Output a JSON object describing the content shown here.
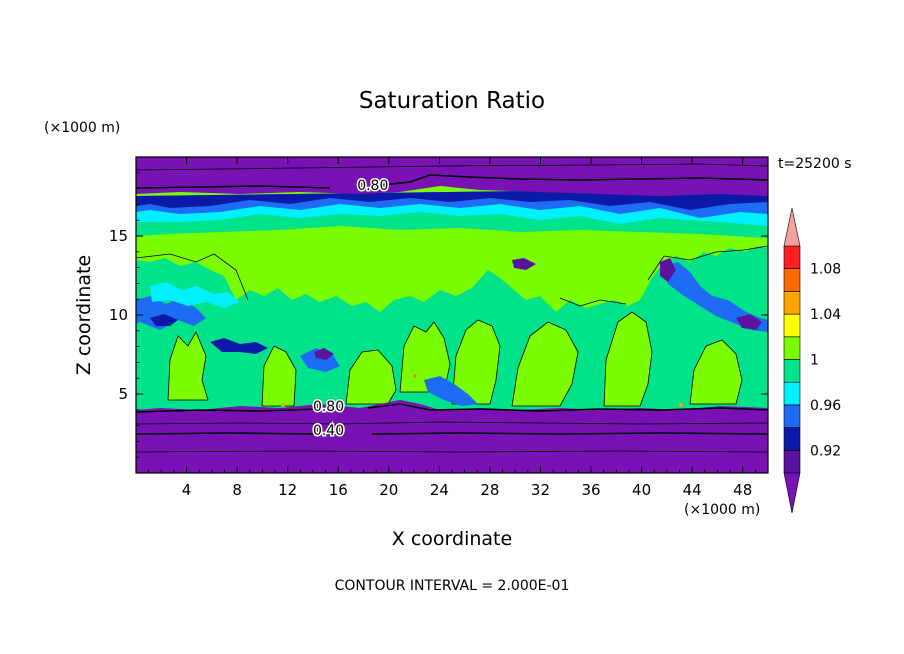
{
  "chart_data": {
    "type": "contour",
    "title": "Saturation Ratio",
    "xlabel": "X coordinate",
    "ylabel": "Z coordinate",
    "x_unit": "(×1000 m)",
    "y_unit": "(×1000 m)",
    "time_label": "t=25200 s",
    "contour_interval_label": "CONTOUR INTERVAL = 2.000E-01",
    "xlim": [
      0,
      50
    ],
    "ylim": [
      0,
      20
    ],
    "x_ticks": [
      4,
      8,
      12,
      16,
      20,
      24,
      28,
      32,
      36,
      40,
      44,
      48
    ],
    "y_ticks": [
      5,
      10,
      15
    ],
    "colorbar": {
      "levels": [
        0.9,
        0.92,
        0.94,
        0.96,
        0.98,
        1.0,
        1.02,
        1.04,
        1.06,
        1.08,
        1.1
      ],
      "tick_labels": [
        "0.92",
        "0.96",
        "1",
        "1.04",
        "1.08"
      ],
      "tick_values": [
        0.92,
        0.96,
        1.0,
        1.04,
        1.08
      ],
      "colors": [
        "#5a14a0",
        "#0b1aa6",
        "#1e6cf4",
        "#00f0ff",
        "#00e38a",
        "#7cfc00",
        "#ffff00",
        "#ffa500",
        "#ff6a00",
        "#ff2020"
      ],
      "under_color": "#7812b4",
      "over_color": "#f4a0a0",
      "extend": "both"
    },
    "contour_labels": [
      {
        "text": "0.80",
        "x": 14,
        "y": 4.1
      },
      {
        "text": "0.40",
        "x": 14,
        "y": 2.6
      },
      {
        "text": "0.80",
        "x": 17.5,
        "y": 18.1
      }
    ]
  }
}
